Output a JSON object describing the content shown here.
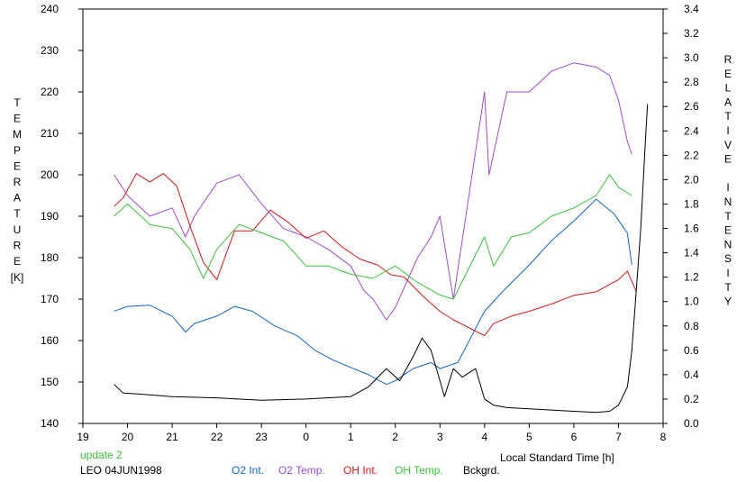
{
  "chart_data": {
    "type": "line",
    "xlabel": "Local Standard Time [h]",
    "ylabel_left_letters": [
      "T",
      "E",
      "M",
      "P",
      "E",
      "R",
      "A",
      "T",
      "U",
      "R",
      "E"
    ],
    "ylabel_left_unit": "[K]",
    "ylabel_right_letters": [
      "R",
      "E",
      "L",
      "A",
      "T",
      "I",
      "V",
      "E",
      "",
      "I",
      "N",
      "T",
      "E",
      "N",
      "S",
      "I",
      "T",
      "Y"
    ],
    "x_ticks": [
      19,
      20,
      21,
      22,
      23,
      0,
      1,
      2,
      3,
      4,
      5,
      6,
      7,
      8
    ],
    "y_left_ticks": [
      140,
      150,
      160,
      170,
      180,
      190,
      200,
      210,
      220,
      230,
      240
    ],
    "y_right_ticks": [
      "0.0",
      "0.2",
      "0.4",
      "0.6",
      "0.8",
      "1.0",
      "1.2",
      "1.4",
      "1.6",
      "1.8",
      "2.0",
      "2.2",
      "2.4",
      "2.6",
      "2.8",
      "3.0",
      "3.2",
      "3.4"
    ],
    "xlim": [
      19,
      32
    ],
    "ylim_left": [
      140,
      240
    ],
    "ylim_right": [
      0,
      3.4
    ],
    "grid": false,
    "legend_position": "bottom",
    "annotation": "update 2",
    "station_label": "LEO 04JUN1998",
    "series": [
      {
        "name": "O2 Int.",
        "axis": "right",
        "color": "#1565c8",
        "x": [
          19.7,
          20.0,
          20.5,
          21.0,
          21.3,
          21.5,
          22.0,
          22.4,
          22.8,
          23.3,
          23.8,
          24.2,
          24.6,
          25.0,
          25.4,
          25.8,
          26.0,
          26.4,
          26.8,
          27.0,
          27.4,
          28.0,
          28.4,
          29.0,
          29.5,
          30.0,
          30.5,
          30.9,
          31.2,
          31.3
        ],
        "y": [
          0.92,
          0.96,
          0.97,
          0.88,
          0.75,
          0.82,
          0.88,
          0.96,
          0.92,
          0.8,
          0.72,
          0.6,
          0.52,
          0.46,
          0.4,
          0.32,
          0.35,
          0.45,
          0.5,
          0.45,
          0.5,
          0.92,
          1.08,
          1.3,
          1.5,
          1.66,
          1.84,
          1.72,
          1.56,
          1.3
        ]
      },
      {
        "name": "O2 Temp.",
        "axis": "left",
        "color": "#9b4fd0",
        "x": [
          19.7,
          20.0,
          20.5,
          21.0,
          21.3,
          21.5,
          22.0,
          22.5,
          23.0,
          23.5,
          24.0,
          24.5,
          25.0,
          25.3,
          25.5,
          25.8,
          26.0,
          26.5,
          26.8,
          27.0,
          27.3,
          28.0,
          28.1,
          28.5,
          29.0,
          29.5,
          30.0,
          30.5,
          30.8,
          31.0,
          31.2,
          31.3
        ],
        "y": [
          200,
          195,
          190,
          192,
          185,
          190,
          198,
          200,
          193,
          187,
          185,
          182,
          178,
          172,
          170,
          165,
          168,
          180,
          185,
          190,
          170,
          220,
          200,
          220,
          220,
          225,
          227,
          226,
          224,
          218,
          208,
          205
        ]
      },
      {
        "name": "OH Int.",
        "axis": "right",
        "color": "#d11a1a",
        "x": [
          19.7,
          19.9,
          20.2,
          20.5,
          20.8,
          21.1,
          21.4,
          21.7,
          22.0,
          22.4,
          22.8,
          23.2,
          23.6,
          24.0,
          24.4,
          24.8,
          25.2,
          25.6,
          25.9,
          26.2,
          26.6,
          27.0,
          27.3,
          28.0,
          28.2,
          28.6,
          29.0,
          29.5,
          30.0,
          30.5,
          31.0,
          31.2,
          31.4
        ],
        "y": [
          1.78,
          1.85,
          2.05,
          1.98,
          2.05,
          1.95,
          1.62,
          1.32,
          1.18,
          1.58,
          1.58,
          1.75,
          1.65,
          1.52,
          1.58,
          1.45,
          1.35,
          1.3,
          1.22,
          1.2,
          1.05,
          0.92,
          0.85,
          0.72,
          0.82,
          0.88,
          0.92,
          0.98,
          1.05,
          1.08,
          1.18,
          1.25,
          1.08
        ]
      },
      {
        "name": "OH Temp.",
        "axis": "left",
        "color": "#3cc13c",
        "x": [
          19.7,
          20.0,
          20.5,
          21.0,
          21.4,
          21.7,
          22.0,
          22.5,
          23.0,
          23.5,
          24.0,
          24.5,
          25.0,
          25.5,
          26.0,
          26.5,
          27.0,
          27.3,
          28.0,
          28.2,
          28.6,
          29.0,
          29.5,
          30.0,
          30.5,
          30.8,
          31.0,
          31.3
        ],
        "y": [
          190,
          193,
          188,
          187,
          182,
          175,
          182,
          188,
          186,
          184,
          178,
          178,
          176,
          175,
          178,
          174,
          171,
          170,
          185,
          178,
          185,
          186,
          190,
          192,
          195,
          200,
          197,
          195
        ]
      },
      {
        "name": "Bckgrd.",
        "axis": "right",
        "color": "#000000",
        "x": [
          19.7,
          19.9,
          20.3,
          21.0,
          22.0,
          23.0,
          24.0,
          25.0,
          25.4,
          25.8,
          26.1,
          26.4,
          26.6,
          26.8,
          27.0,
          27.1,
          27.3,
          27.5,
          27.8,
          28.0,
          28.2,
          28.5,
          29.0,
          29.5,
          30.0,
          30.5,
          30.8,
          31.0,
          31.2,
          31.3,
          31.4,
          31.5,
          31.6,
          31.65
        ],
        "y": [
          0.32,
          0.25,
          0.24,
          0.22,
          0.21,
          0.19,
          0.2,
          0.22,
          0.3,
          0.45,
          0.35,
          0.55,
          0.7,
          0.6,
          0.35,
          0.22,
          0.45,
          0.38,
          0.45,
          0.2,
          0.15,
          0.13,
          0.12,
          0.11,
          0.1,
          0.09,
          0.1,
          0.15,
          0.3,
          0.6,
          1.1,
          1.6,
          2.3,
          2.62
        ]
      }
    ]
  }
}
